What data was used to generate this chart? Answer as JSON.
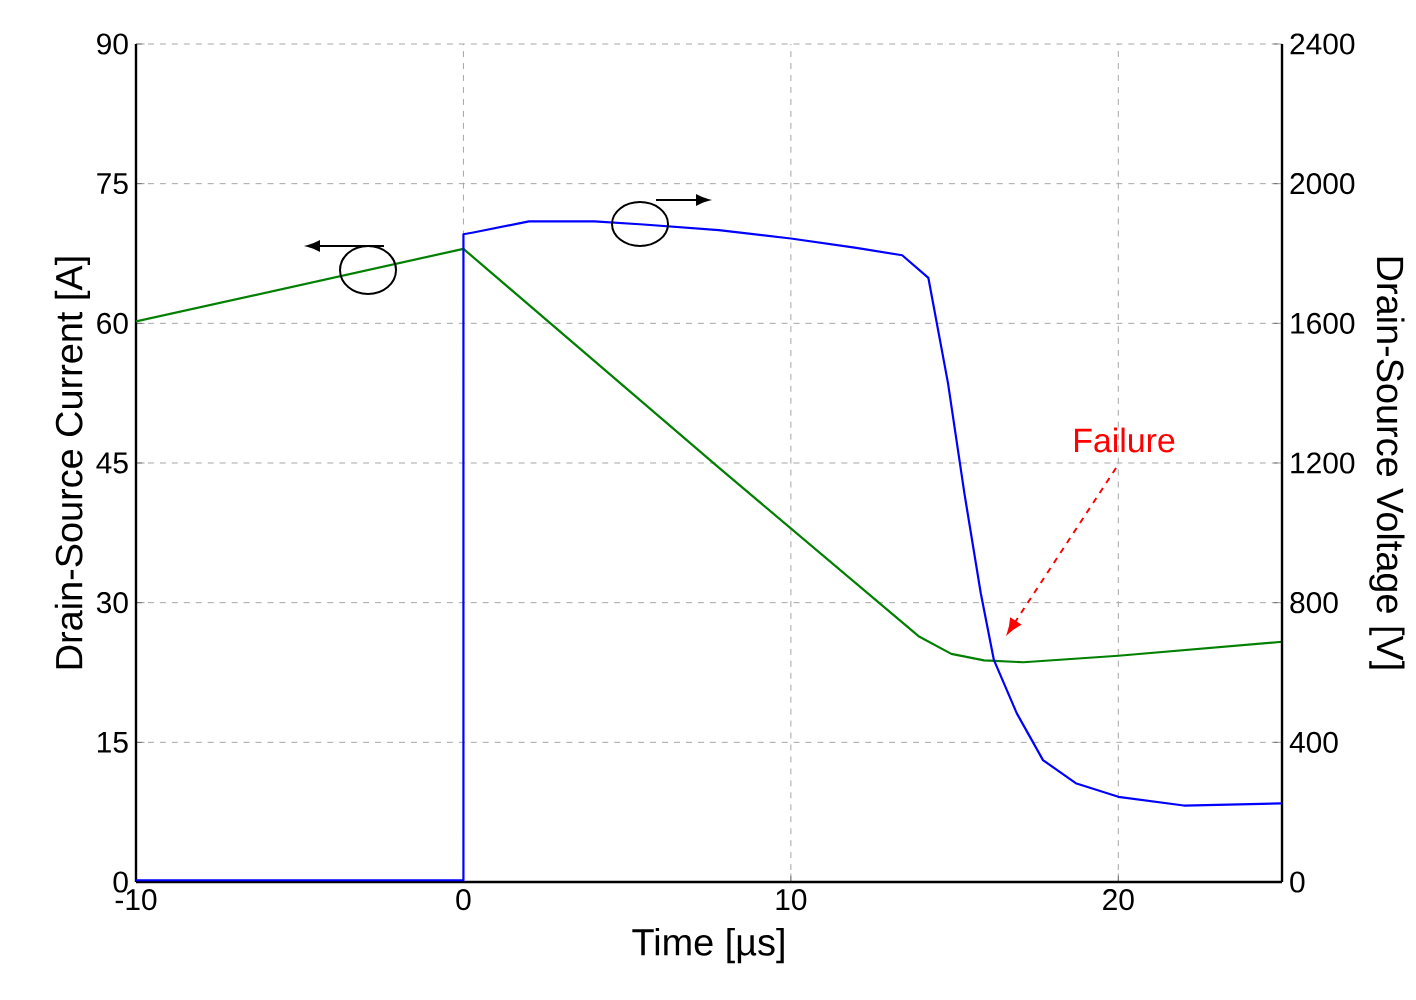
{
  "chart_data": {
    "type": "line",
    "xlabel": "Time [µs]",
    "ylabel": "Drain-Source Current [A]",
    "y2label": "Drain-Source Voltage [V]",
    "xlim": [
      -10,
      25
    ],
    "xticks": [
      -10,
      0,
      10,
      20
    ],
    "ylim": [
      0,
      90
    ],
    "yticks": [
      0,
      15,
      30,
      45,
      60,
      75,
      90
    ],
    "y2lim": [
      0,
      2400
    ],
    "y2ticks": [
      0,
      400,
      800,
      1200,
      1600,
      2000,
      2400
    ],
    "grid": true,
    "marker": "none",
    "line_style": "solid",
    "annotations": [
      "Failure"
    ],
    "series": [
      {
        "color": "#008000",
        "x": [
          -10,
          0,
          7.8,
          13.9,
          14.9,
          15.9,
          17.1,
          20,
          25
        ],
        "values": [
          60.2,
          68.0,
          44.5,
          26.4,
          24.5,
          23.8,
          23.6,
          24.3,
          25.8
        ]
      },
      {
        "color": "#0000ff",
        "axis": "y2",
        "x": [
          -10,
          0,
          0,
          0.3,
          2,
          4,
          5.5,
          7.8,
          10,
          12,
          13.4,
          14.2,
          14.8,
          15.3,
          15.8,
          16.2,
          16.9,
          17.7,
          18.7,
          20,
          22,
          25
        ],
        "values": [
          5,
          5,
          1855,
          1860,
          1892,
          1892,
          1883,
          1867,
          1843,
          1816,
          1795,
          1730,
          1428,
          1113,
          827,
          636,
          483,
          349,
          283,
          244,
          219,
          225
        ]
      }
    ]
  }
}
